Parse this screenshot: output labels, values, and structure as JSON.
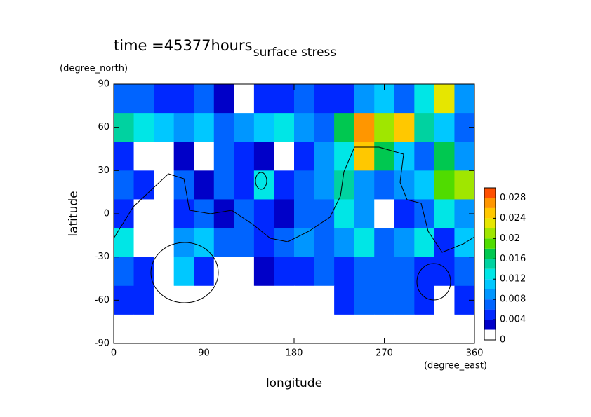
{
  "chart_data": {
    "type": "contour",
    "title": "surface stress",
    "subtitle": "time =45377hours",
    "xlabel": "longitude",
    "xunits": "(degree_east)",
    "ylabel": "latitude",
    "yunits": "(degree_north)",
    "xlim": [
      0,
      360
    ],
    "xticks": [
      0,
      90,
      180,
      270,
      360
    ],
    "ylim": [
      -90,
      90
    ],
    "yticks": [
      -90,
      -60,
      -30,
      0,
      30,
      60,
      90
    ],
    "x": [
      10,
      30,
      50,
      70,
      90,
      110,
      130,
      150,
      170,
      190,
      210,
      230,
      250,
      270,
      290,
      310,
      330,
      350
    ],
    "y": [
      80,
      60,
      40,
      20,
      0,
      -20,
      -40,
      -60,
      -80
    ],
    "z": [
      [
        0.006,
        0.006,
        0.005,
        0.004,
        0.006,
        0.003,
        0.001,
        0.004,
        0.004,
        0.006,
        0.005,
        0.004,
        0.008,
        0.01,
        0.006,
        0.012,
        0.022,
        0.008
      ],
      [
        0.014,
        0.012,
        0.01,
        0.008,
        0.01,
        0.006,
        0.008,
        0.01,
        0.012,
        0.008,
        0.006,
        0.016,
        0.026,
        0.02,
        0.024,
        0.014,
        0.01,
        0.006
      ],
      [
        0.004,
        0.001,
        0.001,
        0.002,
        0.001,
        0.006,
        0.004,
        0.003,
        0.001,
        0.004,
        0.008,
        0.012,
        0.024,
        0.016,
        0.01,
        0.006,
        0.016,
        0.008
      ],
      [
        0.006,
        0.004,
        0.001,
        0.006,
        0.002,
        0.006,
        0.004,
        0.012,
        0.004,
        0.006,
        0.008,
        0.014,
        0.008,
        0.006,
        0.008,
        0.01,
        0.018,
        0.02
      ],
      [
        0.004,
        0.001,
        0.001,
        0.004,
        0.006,
        0.002,
        0.006,
        0.004,
        0.003,
        0.006,
        0.006,
        0.012,
        0.008,
        0.001,
        0.004,
        0.006,
        0.012,
        0.008
      ],
      [
        0.012,
        0.001,
        0.001,
        0.008,
        0.01,
        0.006,
        0.006,
        0.004,
        0.006,
        0.008,
        0.006,
        0.008,
        0.012,
        0.006,
        0.008,
        0.012,
        0.004,
        0.01
      ],
      [
        0.006,
        0.004,
        0.001,
        0.01,
        0.004,
        0.001,
        0.001,
        0.002,
        0.004,
        0.004,
        0.006,
        0.004,
        0.006,
        0.006,
        0.006,
        0.004,
        0.004,
        0.006
      ],
      [
        0.004,
        0.004,
        0.001,
        0.001,
        0.001,
        0.001,
        0.001,
        0.001,
        0.001,
        0.001,
        0.001,
        0.004,
        0.006,
        0.006,
        0.006,
        0.004,
        0.001,
        0.004
      ],
      [
        0,
        0,
        0,
        0,
        0,
        0,
        0,
        0,
        0,
        0,
        0,
        0,
        0,
        0,
        0,
        0,
        0,
        0
      ]
    ],
    "clim": [
      0,
      0.03
    ],
    "cticks": [
      0,
      0.004,
      0.008,
      0.012,
      0.016,
      0.02,
      0.024,
      0.028
    ],
    "colors": [
      "#ffffff",
      "#0000c8",
      "#0028ff",
      "#0064ff",
      "#0096ff",
      "#00c8ff",
      "#00e6e6",
      "#00d2a0",
      "#00c850",
      "#50dc00",
      "#a0e600",
      "#e6e600",
      "#ffc800",
      "#ff9600",
      "#ff5000"
    ]
  }
}
